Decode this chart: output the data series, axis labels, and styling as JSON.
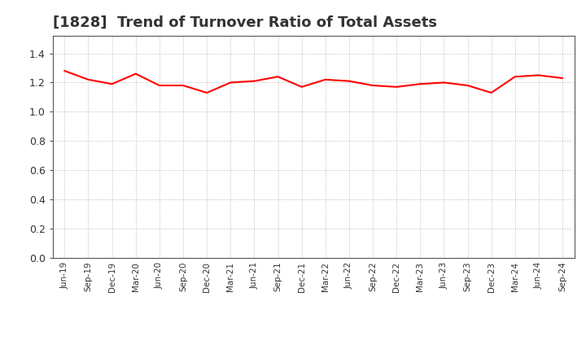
{
  "title": "[1828]  Trend of Turnover Ratio of Total Assets",
  "title_fontsize": 13,
  "title_color": "#333333",
  "line_color": "#ff0000",
  "line_width": 1.5,
  "background_color": "#ffffff",
  "plot_bg_color": "#ffffff",
  "grid_color": "#999999",
  "grid_linestyle": ":",
  "ylim": [
    0.0,
    1.52
  ],
  "yticks": [
    0.0,
    0.2,
    0.4,
    0.6,
    0.8,
    1.0,
    1.2,
    1.4
  ],
  "labels": [
    "Jun-19",
    "Sep-19",
    "Dec-19",
    "Mar-20",
    "Jun-20",
    "Sep-20",
    "Dec-20",
    "Mar-21",
    "Jun-21",
    "Sep-21",
    "Dec-21",
    "Mar-22",
    "Jun-22",
    "Sep-22",
    "Dec-22",
    "Mar-23",
    "Jun-23",
    "Sep-23",
    "Dec-23",
    "Mar-24",
    "Jun-24",
    "Sep-24"
  ],
  "values": [
    1.28,
    1.22,
    1.19,
    1.26,
    1.18,
    1.18,
    1.13,
    1.2,
    1.21,
    1.24,
    1.17,
    1.22,
    1.21,
    1.18,
    1.17,
    1.19,
    1.2,
    1.18,
    1.13,
    1.24,
    1.25,
    1.23
  ]
}
